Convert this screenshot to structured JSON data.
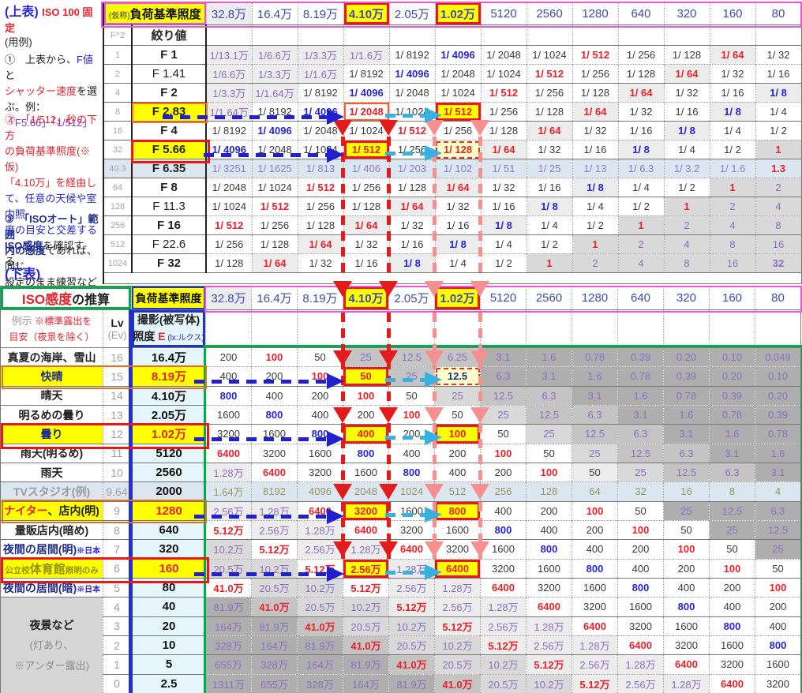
{
  "colors": {
    "accent_yellow": "#ffff00",
    "accent_magenta": "#ed53dd",
    "accent_green": "#00ad4b",
    "accent_blue_frame": "#2230cc",
    "accent_red": "#e8222a",
    "arrow_blue": "#2020cc",
    "arrow_cyan": "#38b0e0",
    "arrow_red": "#e31b1b",
    "arrow_pink": "#f59090",
    "value_purple": "#8d6ec0",
    "value_blue": "#2726d6",
    "lightblue_row": "#dce6f1"
  },
  "sidebar": {
    "header": [
      [
        "(上表) ",
        "blueb"
      ],
      [
        "ISO 100 固定",
        "redb"
      ]
    ],
    "usage": "(用例)",
    "note1": [
      [
        [
          "①　上表から、",
          "k"
        ],
        [
          "F値",
          "blue"
        ],
        [
          "と",
          "k"
        ]
      ],
      [
        [
          "シャッター速度",
          "red"
        ],
        [
          "を選ぶ。例：",
          "k"
        ]
      ],
      [
        [
          "「F5.66」「1/512」",
          "pur"
        ]
      ]
    ],
    "note2": [
      [
        [
          "②　「1/512」秒の下方",
          "red"
        ]
      ],
      [
        [
          "の負荷基準照度(※仮)",
          "red"
        ]
      ],
      [
        [
          "「4.10万」を経由し",
          "red"
        ]
      ],
      [
        [
          "て、任意の天候や室内照",
          "blue"
        ]
      ],
      [
        [
          "度の目安と交差する",
          "blue"
        ]
      ],
      [
        [
          "ISO感度",
          "navy"
        ],
        [
          "を確認する。",
          "k"
        ]
      ]
    ],
    "note3": [
      [
        [
          "③　「ISOオート」範囲",
          "navy"
        ]
      ],
      [
        [
          "内の感度",
          "navy"
        ],
        [
          "であれば、同じ",
          "k"
        ]
      ],
      [
        [
          "設定のまま練習など可。",
          "k"
        ]
      ]
    ],
    "lower_title": "(下表)"
  },
  "upper": {
    "corner_small": "(仮称)",
    "corner_label": "負荷基準照度",
    "col_headers": [
      "32.8万",
      "16.4万",
      "8.19万",
      "4.10万",
      "2.05万",
      "1.02万",
      "5120",
      "2560",
      "1280",
      "640",
      "320",
      "160",
      "80"
    ],
    "subheader": {
      "f2": "F^2",
      "aperture": "絞り値"
    },
    "rows": [
      {
        "f2": "1",
        "f": "F 1",
        "fs": "redb",
        "cells": [
          "1/13.1万",
          "1/6.6万",
          "1/3.3万",
          "1/1.6万",
          "1/ 8192",
          "1/ 4096",
          "1/ 2048",
          "1/ 1024",
          "1/ 512",
          "1/ 256",
          "1/ 128",
          "1/ 64",
          "1/ 32"
        ]
      },
      {
        "f2": "2",
        "f": "F 1.41",
        "fs": "plain",
        "cells": [
          "1/6.6万",
          "1/3.3万",
          "1/1.6万",
          "1/ 8192",
          "1/ 4096",
          "1/ 2048",
          "1/ 1024",
          "1/ 512",
          "1/ 256",
          "1/ 128",
          "1/ 64",
          "1/ 32",
          "1/ 16"
        ]
      },
      {
        "f2": "4",
        "f": "F 2",
        "fs": "b",
        "cells": [
          "1/3.3万",
          "1/1.64万",
          "1/ 8192",
          "1/ 4096",
          "1/ 2048",
          "1/ 1024",
          "1/ 512",
          "1/ 256",
          "1/ 128",
          "1/ 64",
          "1/ 32",
          "1/ 16",
          "1/ 8"
        ]
      },
      {
        "f2": "8",
        "f": "F 2.83",
        "fs": "hlo",
        "cells": [
          "1/1.64万",
          "1/ 8192",
          "1/ 4096",
          "1/ 2048",
          "1/ 1024",
          "1/ 512",
          "1/ 256",
          "1/ 128",
          "1/ 64",
          "1/ 32",
          "1/ 16",
          "1/ 8",
          "1/ 4"
        ]
      },
      {
        "f2": "16",
        "f": "F 4",
        "fs": "b",
        "cells": [
          "1/ 8192",
          "1/ 4096",
          "1/ 2048",
          "1/ 1024",
          "1/ 512",
          "1/ 256",
          "1/ 128",
          "1/ 64",
          "1/ 32",
          "1/ 16",
          "1/ 8",
          "1/ 4",
          "1/ 2"
        ]
      },
      {
        "f2": "32",
        "f": "F 5.66",
        "fs": "hlr",
        "cells": [
          "1/ 4096",
          "1/ 2048",
          "1/ 1024",
          "1/ 512",
          "1/ 256",
          "1/ 128",
          "1/ 64",
          "1/ 32",
          "1/ 16",
          "1/ 8",
          "1/ 4",
          "1/ 2",
          "1"
        ]
      },
      {
        "f2": "40.3",
        "f": "F 6.35",
        "fs": "bluerow",
        "cells": [
          "1/ 3251",
          "1/ 1625",
          "1/ 813",
          "1/ 406",
          "1/ 203",
          "1/ 102",
          "1/ 51",
          "1/ 25",
          "1/ 13",
          "1/ 6.3",
          "1/ 3.2",
          "1/ 1.6",
          "1.3"
        ]
      },
      {
        "f2": "64",
        "f": "F 8",
        "fs": "b",
        "cells": [
          "1/ 2048",
          "1/ 1024",
          "1/ 512",
          "1/ 256",
          "1/ 128",
          "1/ 64",
          "1/ 32",
          "1/ 16",
          "1/ 8",
          "1/ 4",
          "1/ 2",
          "1",
          "2"
        ]
      },
      {
        "f2": "128",
        "f": "F 11.3",
        "fs": "plain",
        "cells": [
          "1/ 1024",
          "1/ 512",
          "1/ 256",
          "1/ 128",
          "1/ 64",
          "1/ 32",
          "1/ 16",
          "1/ 8",
          "1/ 4",
          "1/ 2",
          "1",
          "2",
          "4"
        ]
      },
      {
        "f2": "256",
        "f": "F 16",
        "fs": "redb",
        "cells": [
          "1/ 512",
          "1/ 256",
          "1/ 128",
          "1/ 64",
          "1/ 32",
          "1/ 16",
          "1/ 8",
          "1/ 4",
          "1/ 2",
          "1",
          "2",
          "4",
          "8"
        ]
      },
      {
        "f2": "512",
        "f": "F 22.6",
        "fs": "plain",
        "cells": [
          "1/ 256",
          "1/ 128",
          "1/ 64",
          "1/ 32",
          "1/ 16",
          "1/ 8",
          "1/ 4",
          "1/ 2",
          "1",
          "2",
          "4",
          "8",
          "16"
        ]
      },
      {
        "f2": "1024",
        "f": "F 32",
        "fs": "b",
        "cells": [
          "1/ 128",
          "1/ 64",
          "1/ 32",
          "1/ 16",
          "1/ 8",
          "1/ 4",
          "1/ 2",
          "1",
          "2",
          "4",
          "8",
          "16",
          "32"
        ]
      }
    ]
  },
  "lower": {
    "title_red": "ISO感度",
    "title_rest": "の推算",
    "corner_label": "負荷基準照度",
    "col_headers": [
      "32.8万",
      "16.4万",
      "8.19万",
      "4.10万",
      "2.05万",
      "1.02万",
      "5120",
      "2560",
      "1280",
      "640",
      "320",
      "160",
      "80"
    ],
    "subheader": {
      "rei_line1": [
        [
          "例示 ",
          "grey"
        ],
        [
          "※標準露出を",
          "redsm"
        ]
      ],
      "rei_line2": [
        [
          "目安（夜景を除く）",
          "redsm"
        ]
      ],
      "lv": "Lv",
      "ev": "(Ev)",
      "e_line1": [
        [
          "撮影(被写体)",
          "kb"
        ]
      ],
      "e_line2": [
        [
          "照度 ",
          "kb"
        ],
        [
          "E",
          "redb"
        ],
        [
          " (lx:ルクス)",
          "bluesm"
        ]
      ]
    },
    "merged_label": [
      [
        "夜景など",
        "m1"
      ],
      [
        "(灯あり、",
        "m2"
      ],
      [
        "※アンダー露出)",
        "m2"
      ]
    ],
    "rows": [
      {
        "label": [
          [
            "真夏の海岸、雪山",
            "k"
          ]
        ],
        "lv": "16",
        "e": "16.4万",
        "es": "",
        "cells": [
          "200",
          "100",
          "50",
          "25",
          "12.5",
          "6.25",
          "3.1",
          "1.6",
          "0.78",
          "0.39",
          "0.20",
          "0.10",
          "0.049"
        ],
        "sh": "0003334444444"
      },
      {
        "label": [
          [
            "快晴",
            "navy"
          ]
        ],
        "lv": "15",
        "e": "8.19万",
        "es": "hl",
        "cells": [
          "400",
          "200",
          "100",
          "50",
          "25",
          "12.5",
          "6.3",
          "3.1",
          "1.6",
          "0.78",
          "0.39",
          "0.20",
          "0.10"
        ],
        "sh": "0000304444444"
      },
      {
        "label": [
          [
            "晴天",
            "k"
          ]
        ],
        "lv": "14",
        "e": "4.10万",
        "es": "",
        "cells": [
          "800",
          "400",
          "200",
          "100",
          "50",
          "25",
          "12.5",
          "6.3",
          "3.1",
          "1.6",
          "0.78",
          "0.39",
          "0.20"
        ],
        "sh": "0000023344444"
      },
      {
        "label": [
          [
            "明るめの曇り",
            "k"
          ]
        ],
        "lv": "13",
        "e": "2.05万",
        "es": "",
        "cells": [
          "1600",
          "800",
          "400",
          "200",
          "100",
          "50",
          "25",
          "12.5",
          "6.3",
          "3.1",
          "1.6",
          "0.78",
          "0.39"
        ],
        "sh": "0000002334444"
      },
      {
        "label": [
          [
            "曇り",
            "navy"
          ]
        ],
        "lv": "12",
        "e": "1.02万",
        "es": "hl",
        "cells": [
          "3200",
          "1600",
          "800",
          "400",
          "200",
          "100",
          "50",
          "25",
          "12.5",
          "6.3",
          "3.1",
          "1.6",
          "0.78"
        ],
        "sh": "0000000233444"
      },
      {
        "label": [
          [
            "雨天(明るめ)",
            "k"
          ]
        ],
        "lv": "11",
        "e": "5120",
        "es": "",
        "cells": [
          "6400",
          "3200",
          "1600",
          "800",
          "400",
          "200",
          "100",
          "50",
          "25",
          "12.5",
          "6.3",
          "3.1",
          "1.6"
        ],
        "sh": "0000000023344"
      },
      {
        "label": [
          [
            "雨天",
            "k"
          ]
        ],
        "lv": "10",
        "e": "2560",
        "es": "",
        "cells": [
          "1.28万",
          "6400",
          "3200",
          "1600",
          "800",
          "400",
          "200",
          "100",
          "50",
          "25",
          "12.5",
          "6.3",
          "3.1"
        ],
        "sh": "1000000012334"
      },
      {
        "label": [
          [
            "TVスタジオ(例)",
            "grey"
          ]
        ],
        "lv": "9.64",
        "e": "2000",
        "es": "tv",
        "cells": [
          "1.64万",
          "8192",
          "4096",
          "2048",
          "1024",
          "512",
          "256",
          "128",
          "64",
          "32",
          "16",
          "8",
          "4"
        ],
        "sh": "5555555555555"
      },
      {
        "label": [
          [
            "ナイター",
            "red"
          ],
          [
            "、店内(明)",
            "k"
          ]
        ],
        "lv": "9",
        "e": "1280",
        "es": "hl",
        "cells": [
          "2.56万",
          "1.28万",
          "6400",
          "3200",
          "1600",
          "800",
          "400",
          "200",
          "100",
          "50",
          "25",
          "12.5",
          "6.3"
        ],
        "sh": "1100000000444"
      },
      {
        "label": [
          [
            "量販店内(暗め)",
            "k"
          ]
        ],
        "lv": "8",
        "e": "640",
        "es": "",
        "cells": [
          "5.12万",
          "2.56万",
          "1.28万",
          "6400",
          "3200",
          "1600",
          "800",
          "400",
          "200",
          "100",
          "50",
          "25",
          "12.5"
        ],
        "sh": "0110000000044"
      },
      {
        "label": [
          [
            "夜間の居間(明)",
            "navy"
          ],
          [
            "※日本",
            "smallblue"
          ]
        ],
        "lv": "7",
        "e": "320",
        "es": "",
        "cells": [
          "10.2万",
          "5.12万",
          "2.56万",
          "1.28万",
          "6400",
          "3200",
          "1600",
          "800",
          "400",
          "200",
          "100",
          "50",
          "25"
        ],
        "sh": "2011000000004"
      },
      {
        "label": [
          [
            "公立校",
            "olivesm"
          ],
          [
            "体育館",
            "olive"
          ],
          [
            "照明のみ",
            "olivesm"
          ]
        ],
        "lv": "6",
        "e": "160",
        "es": "hl",
        "cells": [
          "20.5万",
          "10.2万",
          "5.12万",
          "2.56万",
          "1.28万",
          "6400",
          "3200",
          "1600",
          "800",
          "400",
          "200",
          "100",
          "50"
        ],
        "sh": "2200100000000"
      },
      {
        "label": [
          [
            "夜間の居間(暗)",
            "navy"
          ],
          [
            "※日本",
            "smallblue"
          ]
        ],
        "lv": "5",
        "e": "80",
        "es": "",
        "cells": [
          "41.0万",
          "20.5万",
          "10.2万",
          "5.12万",
          "2.56万",
          "1.28万",
          "6400",
          "3200",
          "1600",
          "800",
          "400",
          "200",
          "100"
        ],
        "sh": "0220110000000"
      },
      {
        "label": null,
        "lv": "4",
        "e": "40",
        "es": "",
        "cells": [
          "81.9万",
          "41.0万",
          "20.5万",
          "10.2万",
          "5.12万",
          "2.56万",
          "1.28万",
          "6400",
          "3200",
          "1600",
          "800",
          "400",
          "200"
        ],
        "sh": "4322111000000"
      },
      {
        "label": null,
        "lv": "3",
        "e": "20",
        "es": "blue",
        "cells": [
          "164万",
          "81.9万",
          "41.0万",
          "20.5万",
          "10.2万",
          "5.12万",
          "2.56万",
          "1.28万",
          "6400",
          "3200",
          "1600",
          "800",
          "400"
        ],
        "sh": "4432211100000"
      },
      {
        "label": null,
        "lv": "2",
        "e": "10",
        "es": "",
        "cells": [
          "328万",
          "164万",
          "81.9万",
          "41.0万",
          "20.5万",
          "10.2万",
          "5.12万",
          "2.56万",
          "1.28万",
          "6400",
          "3200",
          "1600",
          "800"
        ],
        "sh": "4443221110000"
      },
      {
        "label": null,
        "lv": "1",
        "e": "5",
        "es": "",
        "cells": [
          "655万",
          "328万",
          "164万",
          "81.9万",
          "41.0万",
          "20.5万",
          "10.2万",
          "5.12万",
          "2.56万",
          "1.28万",
          "6400",
          "3200",
          "1600"
        ],
        "sh": "4444322111000"
      },
      {
        "label": null,
        "lv": "0",
        "e": "2.5",
        "es": "red",
        "cells": [
          "1311万",
          "655万",
          "328万",
          "164万",
          "81.9万",
          "41.0万",
          "20.5万",
          "10.2万",
          "5.12万",
          "2.56万",
          "1.28万",
          "6400",
          "3200"
        ],
        "sh": "4444432211100"
      }
    ]
  }
}
